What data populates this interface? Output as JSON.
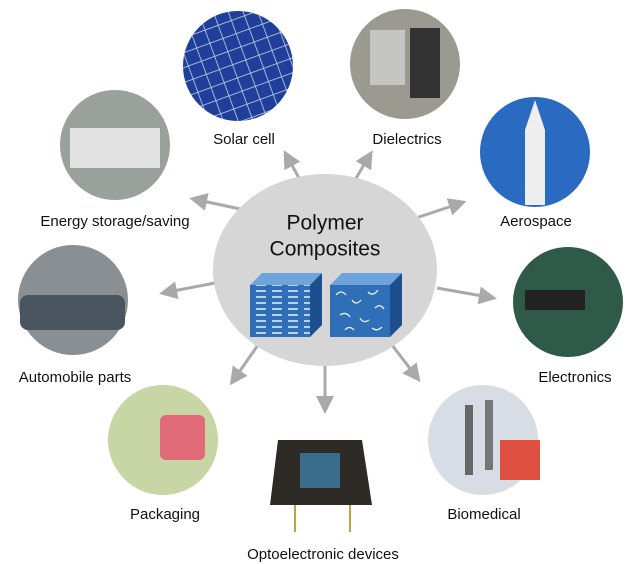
{
  "center": {
    "title_lines": [
      "Polymer",
      "Composites"
    ]
  },
  "nodes": [
    {
      "label": "Solar cell"
    },
    {
      "label": "Dielectrics"
    },
    {
      "label": "Energy storage/saving"
    },
    {
      "label": "Aerospace"
    },
    {
      "label": "Automobile parts"
    },
    {
      "label": "Electronics"
    },
    {
      "label": "Packaging"
    },
    {
      "label": "Biomedical"
    },
    {
      "label": "Optoelectronic devices"
    }
  ]
}
